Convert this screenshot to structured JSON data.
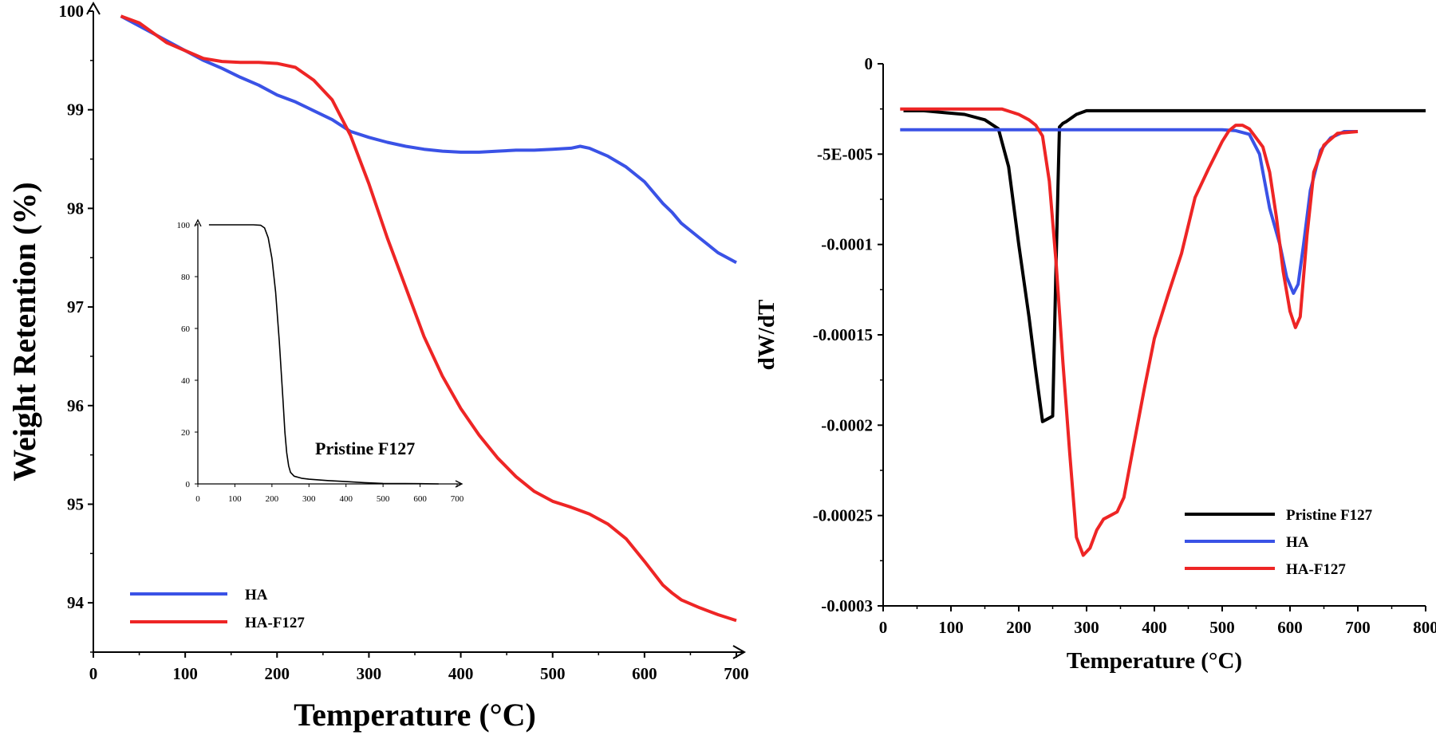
{
  "chart_data": [
    {
      "type": "line",
      "xlabel": "Temperature (°C)",
      "ylabel": "Weight Retention (%)",
      "xlim": [
        0,
        700
      ],
      "ylim": [
        93.5,
        100
      ],
      "xticks": [
        "0",
        "100",
        "200",
        "300",
        "400",
        "500",
        "600",
        "700"
      ],
      "yticks": [
        "94",
        "95",
        "96",
        "97",
        "98",
        "99",
        "100"
      ],
      "legend_position": "bottom-left",
      "series": [
        {
          "name": "HA",
          "color": "#3a52e6",
          "x": [
            30,
            50,
            80,
            100,
            120,
            140,
            160,
            180,
            200,
            220,
            240,
            260,
            280,
            300,
            320,
            340,
            360,
            380,
            400,
            420,
            440,
            460,
            480,
            500,
            520,
            530,
            540,
            560,
            580,
            600,
            620,
            630,
            640,
            660,
            680,
            700
          ],
          "y": [
            99.95,
            99.85,
            99.7,
            99.6,
            99.5,
            99.42,
            99.33,
            99.25,
            99.15,
            99.08,
            98.99,
            98.9,
            98.78,
            98.72,
            98.67,
            98.63,
            98.6,
            98.58,
            98.57,
            98.57,
            98.58,
            98.59,
            98.59,
            98.6,
            98.61,
            98.63,
            98.61,
            98.53,
            98.42,
            98.27,
            98.05,
            97.96,
            97.85,
            97.7,
            97.55,
            97.45
          ]
        },
        {
          "name": "HA-F127",
          "color": "#ee2525",
          "x": [
            30,
            50,
            80,
            100,
            120,
            140,
            160,
            180,
            200,
            220,
            240,
            260,
            280,
            300,
            320,
            340,
            360,
            380,
            400,
            420,
            440,
            460,
            480,
            500,
            520,
            540,
            560,
            580,
            600,
            620,
            630,
            640,
            660,
            680,
            700
          ],
          "y": [
            99.95,
            99.88,
            99.68,
            99.6,
            99.52,
            99.49,
            99.48,
            99.48,
            99.47,
            99.43,
            99.3,
            99.1,
            98.74,
            98.25,
            97.7,
            97.2,
            96.7,
            96.3,
            95.97,
            95.7,
            95.47,
            95.28,
            95.13,
            95.03,
            94.97,
            94.9,
            94.8,
            94.65,
            94.42,
            94.18,
            94.1,
            94.03,
            93.95,
            93.88,
            93.82
          ]
        }
      ]
    },
    {
      "type": "line",
      "inset": true,
      "title": "Pristine F127",
      "xlim": [
        0,
        700
      ],
      "ylim": [
        0,
        100
      ],
      "xticks": [
        "0",
        "100",
        "200",
        "300",
        "400",
        "500",
        "600",
        "700"
      ],
      "yticks": [
        "0",
        "20",
        "40",
        "60",
        "80",
        "100"
      ],
      "series": [
        {
          "name": "Pristine F127",
          "color": "#000000",
          "x": [
            30,
            100,
            150,
            170,
            180,
            190,
            200,
            210,
            220,
            230,
            235,
            240,
            245,
            250,
            260,
            280,
            300,
            350,
            400,
            450,
            500,
            600,
            650
          ],
          "y": [
            100,
            100,
            100,
            99.8,
            98.8,
            95,
            87,
            74,
            55,
            32,
            20,
            12,
            7,
            4.5,
            3,
            2.2,
            1.8,
            1.3,
            0.9,
            0.5,
            0.2,
            0.1,
            0
          ]
        }
      ]
    },
    {
      "type": "line",
      "xlabel": "Temperature (°C)",
      "ylabel": "dW/dT",
      "xlim": [
        0,
        800
      ],
      "ylim": [
        -0.0003,
        0
      ],
      "xticks": [
        "0",
        "100",
        "200",
        "300",
        "400",
        "500",
        "600",
        "700",
        "800"
      ],
      "yticks": [
        "0",
        "-5E-005",
        "-0.0001",
        "-0.00015",
        "-0.0002",
        "-0.00025",
        "-0.0003"
      ],
      "legend_position": "bottom-right",
      "series": [
        {
          "name": "Pristine F127",
          "color": "#000000",
          "x": [
            30,
            60,
            90,
            120,
            150,
            170,
            185,
            200,
            215,
            225,
            235,
            245,
            250,
            255,
            260,
            265,
            270,
            285,
            300,
            400,
            500,
            600,
            700,
            800
          ],
          "y": [
            -2.6e-05,
            -2.6e-05,
            -2.7e-05,
            -2.8e-05,
            -3.1e-05,
            -3.6e-05,
            -5.7e-05,
            -0.0001,
            -0.00014,
            -0.00017,
            -0.000198,
            -0.000196,
            -0.000195,
            -0.00011,
            -3.5e-05,
            -3.3e-05,
            -3.2e-05,
            -2.8e-05,
            -2.6e-05,
            -2.6e-05,
            -2.6e-05,
            -2.6e-05,
            -2.6e-05,
            -2.6e-05
          ]
        },
        {
          "name": "HA",
          "color": "#3a52e6",
          "x": [
            25,
            100,
            200,
            300,
            400,
            500,
            520,
            540,
            555,
            570,
            585,
            595,
            605,
            612,
            620,
            630,
            645,
            660,
            680,
            700
          ],
          "y": [
            -3.65e-05,
            -3.65e-05,
            -3.65e-05,
            -3.65e-05,
            -3.65e-05,
            -3.65e-05,
            -3.7e-05,
            -3.9e-05,
            -5e-05,
            -8e-05,
            -0.0001,
            -0.000118,
            -0.000127,
            -0.000122,
            -0.0001,
            -7e-05,
            -4.8e-05,
            -4.1e-05,
            -3.75e-05,
            -3.75e-05
          ]
        },
        {
          "name": "HA-F127",
          "color": "#ee2525",
          "x": [
            25,
            100,
            175,
            200,
            215,
            225,
            235,
            245,
            255,
            265,
            275,
            285,
            295,
            305,
            315,
            325,
            335,
            345,
            355,
            370,
            385,
            400,
            420,
            440,
            460,
            480,
            500,
            510,
            520,
            530,
            540,
            550,
            560,
            570,
            580,
            590,
            600,
            608,
            615,
            625,
            635,
            650,
            670,
            700
          ],
          "y": [
            -2.5e-05,
            -2.5e-05,
            -2.5e-05,
            -2.8e-05,
            -3.1e-05,
            -3.4e-05,
            -4e-05,
            -6.5e-05,
            -0.00011,
            -0.000165,
            -0.000215,
            -0.000262,
            -0.000272,
            -0.000268,
            -0.000258,
            -0.000252,
            -0.00025,
            -0.000248,
            -0.00024,
            -0.00021,
            -0.00018,
            -0.000152,
            -0.000128,
            -0.000105,
            -7.4e-05,
            -5.8e-05,
            -4.3e-05,
            -3.7e-05,
            -3.4e-05,
            -3.4e-05,
            -3.6e-05,
            -4.1e-05,
            -4.6e-05,
            -6e-05,
            -8.5e-05,
            -0.000115,
            -0.000137,
            -0.000146,
            -0.00014,
            -9.5e-05,
            -6e-05,
            -4.5e-05,
            -3.85e-05,
            -3.75e-05
          ]
        }
      ]
    }
  ]
}
